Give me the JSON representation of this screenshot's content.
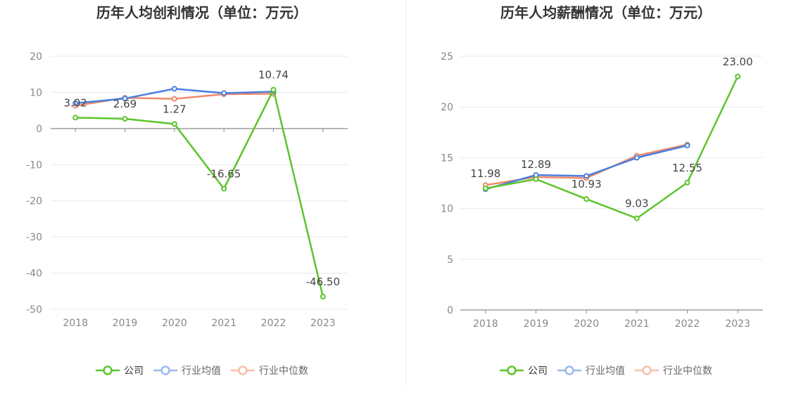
{
  "charts": [
    {
      "id": "left",
      "title": "历年人均创利情况（单位：万元）",
      "legend": [
        "公司",
        "行业均值",
        "行业中位数"
      ],
      "chart_data": {
        "type": "line",
        "title": "历年人均创利情况（单位：万元）",
        "categories": [
          "2018",
          "2019",
          "2020",
          "2021",
          "2022",
          "2023"
        ],
        "ylim": [
          -50,
          20
        ],
        "yticks": [
          20,
          10,
          0,
          -10,
          -20,
          -30,
          -40,
          -50
        ],
        "series": [
          {
            "name": "公司",
            "color": "#5cc42b",
            "values": [
              3.02,
              2.69,
              1.27,
              -16.65,
              10.74,
              -46.5
            ],
            "labels": [
              "3.02",
              "2.69",
              "1.27",
              "-16.65",
              "10.74",
              "-46.50"
            ]
          },
          {
            "name": "行业均值",
            "color": "#4a7ee0",
            "values": [
              7.0,
              8.3,
              11.0,
              9.8,
              10.2,
              null
            ]
          },
          {
            "name": "行业中位数",
            "color": "#f0896a",
            "values": [
              6.3,
              8.5,
              8.2,
              9.5,
              9.6,
              null
            ]
          }
        ]
      }
    },
    {
      "id": "right",
      "title": "历年人均薪酬情况（单位：万元）",
      "legend": [
        "公司",
        "行业均值",
        "行业中位数"
      ],
      "chart_data": {
        "type": "line",
        "title": "历年人均薪酬情况（单位：万元）",
        "categories": [
          "2018",
          "2019",
          "2020",
          "2021",
          "2022",
          "2023"
        ],
        "ylim": [
          0,
          25
        ],
        "yticks": [
          25,
          20,
          15,
          10,
          5,
          0
        ],
        "series": [
          {
            "name": "公司",
            "color": "#5cc42b",
            "values": [
              11.98,
              12.89,
              10.93,
              9.03,
              12.55,
              23.0
            ],
            "labels": [
              "11.98",
              "12.89",
              "10.93",
              "9.03",
              "12.55",
              "23.00"
            ]
          },
          {
            "name": "行业均值",
            "color": "#4a7ee0",
            "values": [
              11.9,
              13.3,
              13.2,
              15.0,
              16.2,
              null
            ]
          },
          {
            "name": "行业中位数",
            "color": "#f0896a",
            "values": [
              12.3,
              13.1,
              13.0,
              15.2,
              16.3,
              null
            ]
          }
        ]
      }
    }
  ]
}
